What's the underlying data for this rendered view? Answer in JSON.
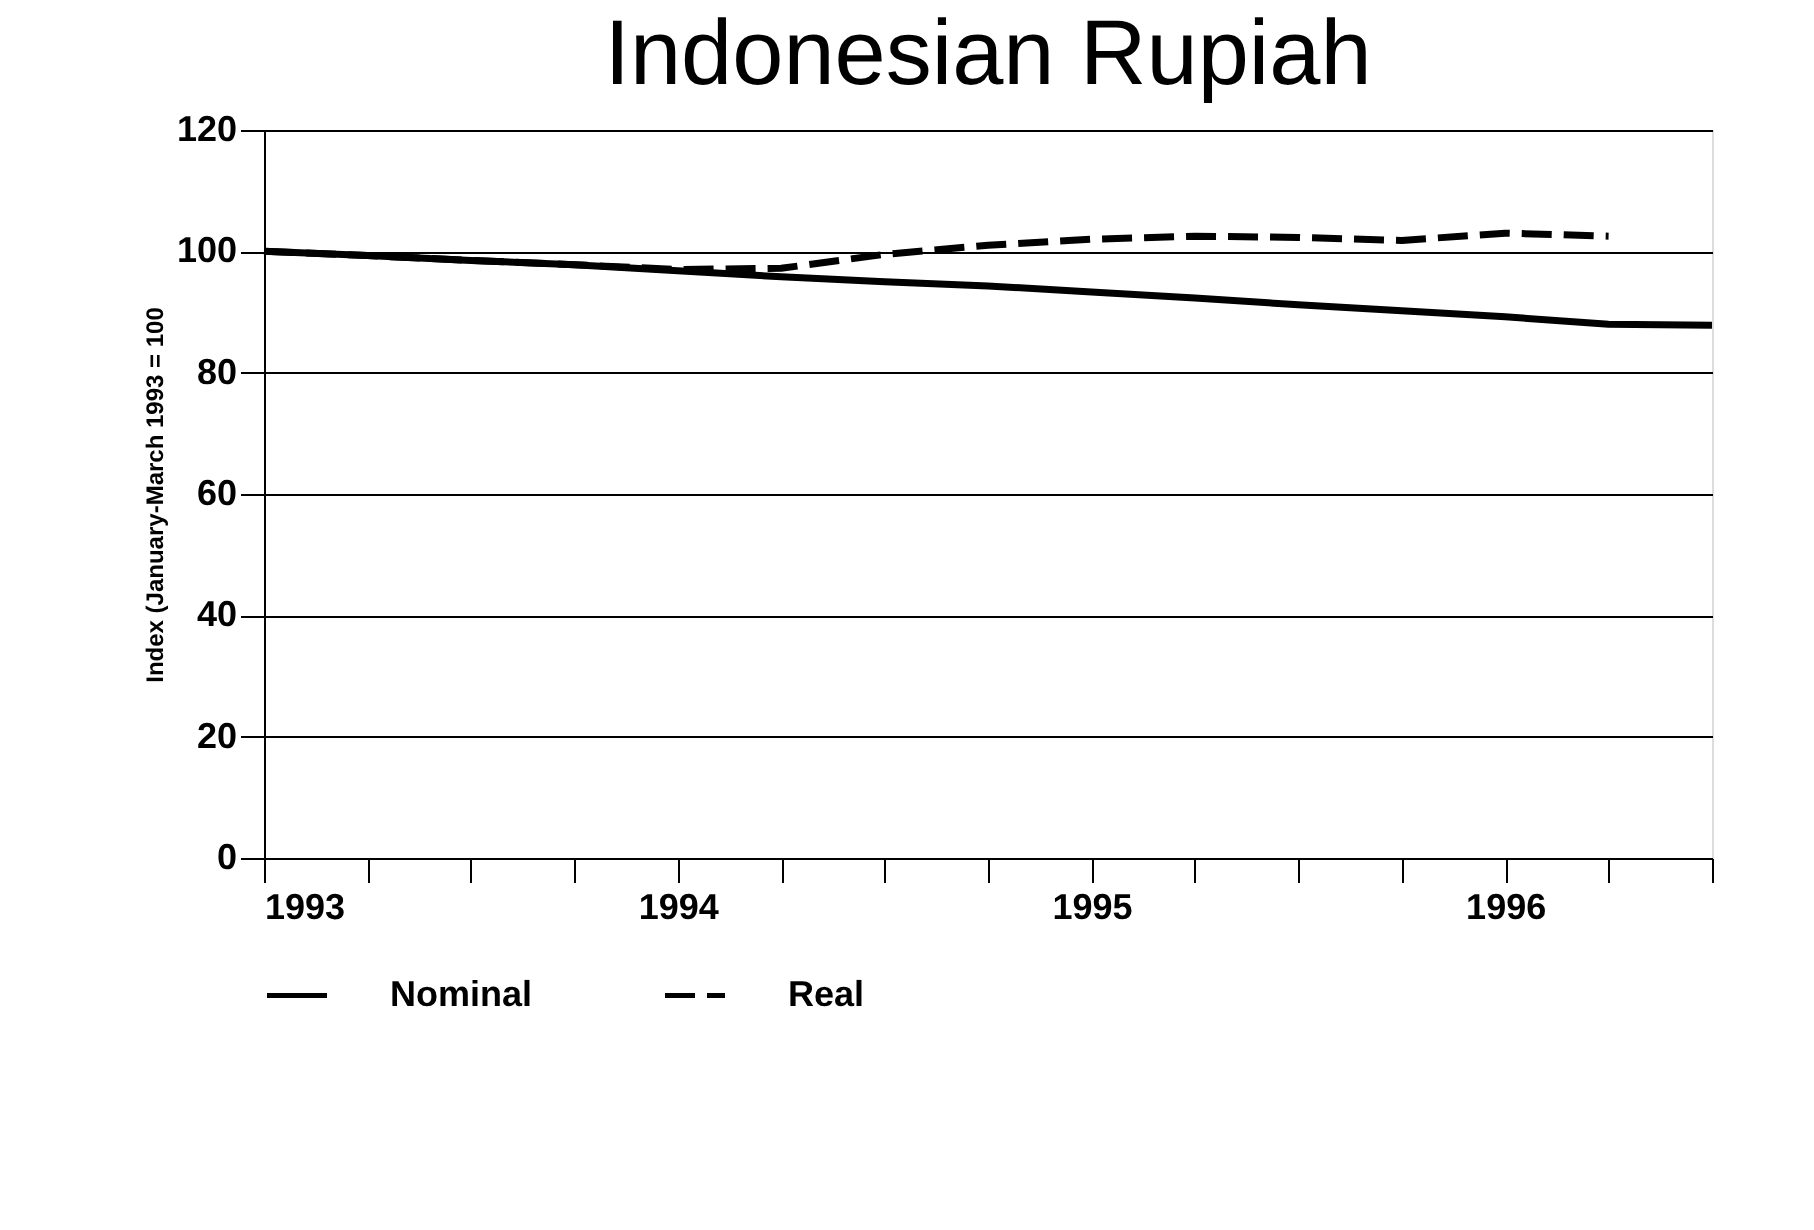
{
  "chart_data": {
    "type": "line",
    "title": "Indonesian Rupiah",
    "ylabel": "Index (January-March 1993 = 100",
    "ylim": [
      0,
      120
    ],
    "yticks": [
      0,
      20,
      40,
      60,
      80,
      100,
      120
    ],
    "xlim": [
      1993,
      1996.5
    ],
    "xticks": [
      1993,
      {
        "value": 1993.25,
        "label": null
      },
      {
        "value": 1993.5,
        "label": null
      },
      {
        "value": 1993.75,
        "label": null
      },
      1994,
      {
        "value": 1994.25,
        "label": null
      },
      {
        "value": 1994.5,
        "label": null
      },
      {
        "value": 1994.75,
        "label": null
      },
      1995,
      {
        "value": 1995.25,
        "label": null
      },
      {
        "value": 1995.5,
        "label": null
      },
      {
        "value": 1995.75,
        "label": null
      },
      1996,
      {
        "value": 1996.25,
        "label": null
      },
      {
        "value": 1996.5,
        "label": null
      }
    ],
    "grid": "y",
    "legend": "bottom",
    "marker": "none",
    "series": [
      {
        "name": "Nominal",
        "color": "#000000",
        "line_style": "solid",
        "x": [
          1993,
          1993.25,
          1993.5,
          1993.75,
          1994,
          1994.25,
          1994.5,
          1994.75,
          1995,
          1995.25,
          1995.5,
          1995.75,
          1996,
          1996.25,
          1996.5
        ],
        "values": [
          100,
          99.3,
          98.5,
          97.8,
          96.8,
          95.8,
          95,
          94.3,
          93.3,
          92.3,
          91.2,
          90.2,
          89.2,
          88,
          87.8
        ]
      },
      {
        "name": "Real",
        "color": "#000000",
        "line_style": "dashed",
        "x": [
          1993,
          1993.25,
          1993.5,
          1993.75,
          1994,
          1994.25,
          1994.5,
          1994.75,
          1995,
          1995.25,
          1995.5,
          1995.75,
          1996,
          1996.25
        ],
        "values": [
          100,
          99.3,
          98.5,
          97.8,
          97,
          97.2,
          99.5,
          101,
          102,
          102.5,
          102.3,
          101.8,
          103,
          102.5
        ]
      }
    ]
  }
}
